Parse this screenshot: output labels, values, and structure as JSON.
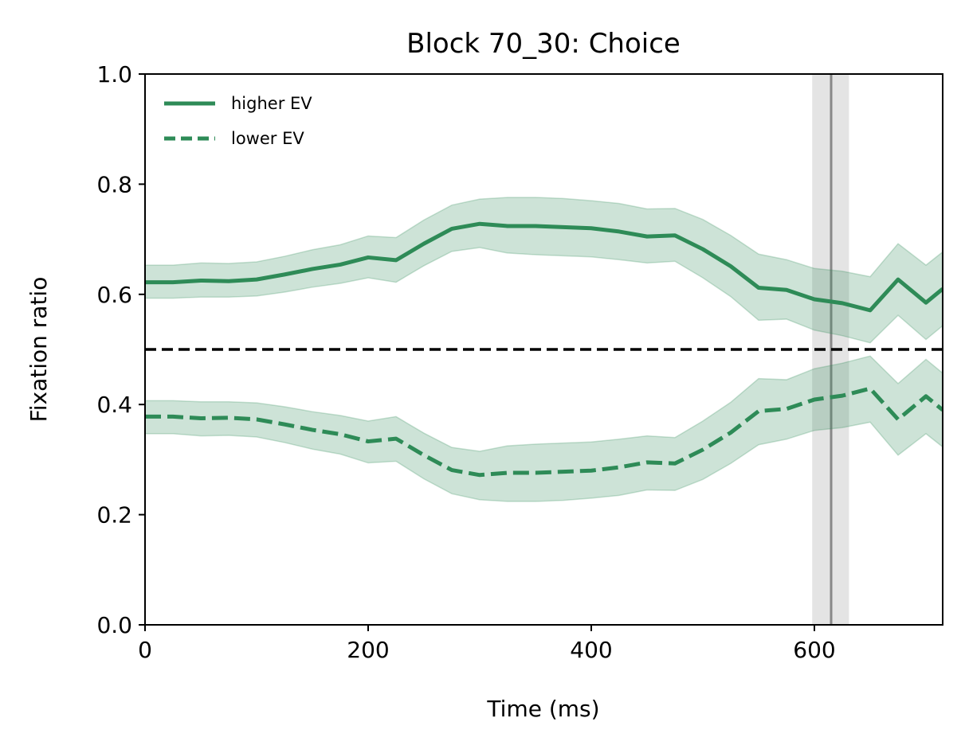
{
  "chart_data": {
    "type": "line",
    "title": "Block 70_30: Choice",
    "xlabel": "Time (ms)",
    "ylabel": "Fixation ratio",
    "xlim": [
      0,
      715
    ],
    "ylim": [
      0,
      1.0
    ],
    "xticks": [
      0,
      200,
      400,
      600
    ],
    "yticks": [
      0.0,
      0.2,
      0.4,
      0.6,
      0.8,
      1.0
    ],
    "x": [
      0,
      25,
      50,
      75,
      100,
      125,
      150,
      175,
      200,
      225,
      250,
      275,
      300,
      325,
      350,
      375,
      400,
      425,
      450,
      475,
      500,
      525,
      550,
      575,
      600,
      625,
      650,
      675,
      700,
      715
    ],
    "series": [
      {
        "name": "higher EV",
        "style": "solid",
        "color": "#2e8b57",
        "values": [
          0.622,
          0.622,
          0.625,
          0.624,
          0.627,
          0.636,
          0.646,
          0.654,
          0.667,
          0.662,
          0.692,
          0.719,
          0.728,
          0.724,
          0.724,
          0.722,
          0.72,
          0.714,
          0.705,
          0.707,
          0.682,
          0.651,
          0.612,
          0.608,
          0.591,
          0.584,
          0.571,
          0.627,
          0.585,
          0.61
        ],
        "lower": [
          0.593,
          0.593,
          0.595,
          0.595,
          0.597,
          0.604,
          0.613,
          0.62,
          0.63,
          0.622,
          0.652,
          0.678,
          0.685,
          0.675,
          0.672,
          0.67,
          0.668,
          0.663,
          0.657,
          0.66,
          0.63,
          0.596,
          0.553,
          0.555,
          0.535,
          0.525,
          0.512,
          0.562,
          0.518,
          0.543
        ],
        "upper": [
          0.653,
          0.653,
          0.657,
          0.656,
          0.659,
          0.669,
          0.681,
          0.69,
          0.706,
          0.703,
          0.735,
          0.762,
          0.773,
          0.776,
          0.776,
          0.774,
          0.77,
          0.765,
          0.755,
          0.756,
          0.736,
          0.707,
          0.673,
          0.663,
          0.647,
          0.642,
          0.632,
          0.692,
          0.653,
          0.677
        ]
      },
      {
        "name": "lower EV",
        "style": "dashed",
        "color": "#2e8b57",
        "values": [
          0.378,
          0.378,
          0.375,
          0.376,
          0.373,
          0.364,
          0.354,
          0.346,
          0.333,
          0.338,
          0.308,
          0.281,
          0.272,
          0.276,
          0.276,
          0.278,
          0.28,
          0.286,
          0.295,
          0.293,
          0.318,
          0.349,
          0.388,
          0.392,
          0.409,
          0.416,
          0.429,
          0.373,
          0.415,
          0.39
        ],
        "lower": [
          0.347,
          0.347,
          0.343,
          0.344,
          0.341,
          0.331,
          0.319,
          0.31,
          0.294,
          0.297,
          0.265,
          0.238,
          0.227,
          0.224,
          0.224,
          0.226,
          0.23,
          0.235,
          0.245,
          0.244,
          0.264,
          0.293,
          0.327,
          0.337,
          0.353,
          0.358,
          0.368,
          0.308,
          0.347,
          0.323
        ],
        "upper": [
          0.407,
          0.407,
          0.405,
          0.405,
          0.403,
          0.396,
          0.387,
          0.38,
          0.37,
          0.378,
          0.348,
          0.322,
          0.315,
          0.325,
          0.328,
          0.33,
          0.332,
          0.337,
          0.343,
          0.34,
          0.37,
          0.404,
          0.447,
          0.445,
          0.465,
          0.475,
          0.488,
          0.438,
          0.482,
          0.457
        ]
      }
    ],
    "reference_hline": {
      "y": 0.5,
      "style": "dashed",
      "color": "#000000"
    },
    "vline": {
      "x": 615,
      "band": [
        598,
        631
      ],
      "color": "#888888",
      "band_color": "#d9d9d9"
    },
    "legend": {
      "placement": "top-left",
      "items": [
        "higher EV",
        "lower EV"
      ]
    },
    "grid": false
  }
}
